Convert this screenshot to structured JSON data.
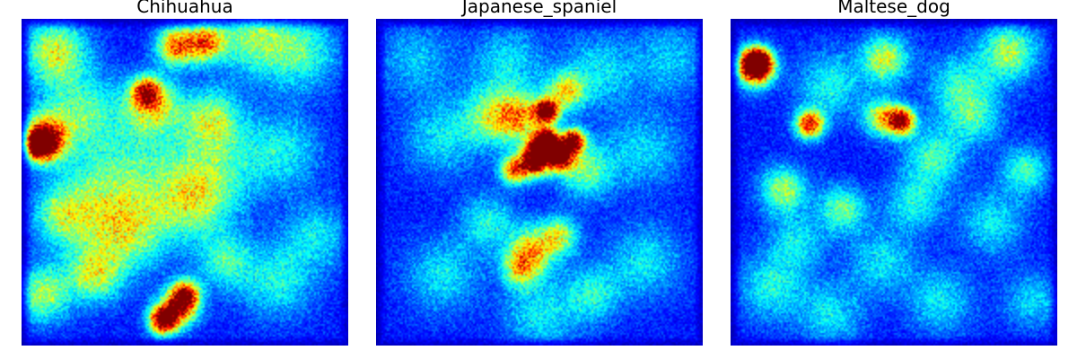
{
  "panels": [
    {
      "title": "Chihuahua",
      "blobs": [
        [
          0.05,
          0.38,
          0.03,
          1.0
        ],
        [
          0.07,
          0.36,
          0.05,
          0.7
        ],
        [
          0.43,
          0.92,
          0.03,
          0.95
        ],
        [
          0.48,
          0.88,
          0.04,
          0.7
        ],
        [
          0.5,
          0.84,
          0.03,
          0.65
        ],
        [
          0.38,
          0.22,
          0.03,
          0.6
        ],
        [
          0.4,
          0.26,
          0.06,
          0.45
        ],
        [
          0.47,
          0.08,
          0.04,
          0.65
        ],
        [
          0.56,
          0.07,
          0.04,
          0.6
        ],
        [
          0.1,
          0.1,
          0.07,
          0.45
        ],
        [
          0.06,
          0.84,
          0.06,
          0.4
        ],
        [
          0.22,
          0.78,
          0.06,
          0.4
        ],
        [
          0.52,
          0.56,
          0.08,
          0.35
        ],
        [
          0.58,
          0.3,
          0.06,
          0.35
        ],
        [
          0.18,
          0.28,
          0.08,
          0.3
        ],
        [
          0.7,
          0.05,
          0.08,
          0.35
        ],
        [
          0.85,
          0.1,
          0.08,
          0.3
        ],
        [
          0.34,
          0.46,
          0.12,
          0.25
        ],
        [
          0.6,
          0.44,
          0.1,
          0.25
        ],
        [
          0.8,
          0.4,
          0.08,
          0.22
        ],
        [
          0.22,
          0.58,
          0.1,
          0.25
        ],
        [
          0.78,
          0.8,
          0.08,
          0.25
        ],
        [
          0.9,
          0.66,
          0.07,
          0.22
        ],
        [
          0.33,
          0.66,
          0.08,
          0.3
        ],
        [
          0.12,
          0.6,
          0.06,
          0.28
        ],
        [
          0.62,
          0.74,
          0.06,
          0.28
        ]
      ]
    },
    {
      "title": "Japanese_spaniel",
      "blobs": [
        [
          0.52,
          0.28,
          0.025,
          1.0
        ],
        [
          0.52,
          0.37,
          0.025,
          1.0
        ],
        [
          0.5,
          0.4,
          0.03,
          0.85
        ],
        [
          0.56,
          0.42,
          0.03,
          0.9
        ],
        [
          0.6,
          0.37,
          0.025,
          0.9
        ],
        [
          0.48,
          0.44,
          0.03,
          0.75
        ],
        [
          0.42,
          0.46,
          0.03,
          0.65
        ],
        [
          0.44,
          0.3,
          0.05,
          0.5
        ],
        [
          0.58,
          0.22,
          0.04,
          0.45
        ],
        [
          0.48,
          0.7,
          0.05,
          0.45
        ],
        [
          0.44,
          0.76,
          0.04,
          0.45
        ],
        [
          0.56,
          0.66,
          0.04,
          0.4
        ],
        [
          0.35,
          0.3,
          0.06,
          0.35
        ],
        [
          0.64,
          0.46,
          0.06,
          0.35
        ],
        [
          0.4,
          0.14,
          0.08,
          0.22
        ],
        [
          0.68,
          0.16,
          0.08,
          0.22
        ],
        [
          0.2,
          0.36,
          0.08,
          0.22
        ],
        [
          0.82,
          0.4,
          0.08,
          0.2
        ],
        [
          0.2,
          0.78,
          0.08,
          0.22
        ],
        [
          0.82,
          0.74,
          0.08,
          0.22
        ],
        [
          0.12,
          0.12,
          0.08,
          0.18
        ],
        [
          0.9,
          0.12,
          0.08,
          0.18
        ],
        [
          0.5,
          0.9,
          0.08,
          0.22
        ],
        [
          0.66,
          0.84,
          0.06,
          0.25
        ],
        [
          0.34,
          0.62,
          0.06,
          0.25
        ]
      ]
    },
    {
      "title": "Maltese_dog",
      "blobs": [
        [
          0.08,
          0.13,
          0.03,
          1.0
        ],
        [
          0.07,
          0.15,
          0.04,
          0.7
        ],
        [
          0.24,
          0.32,
          0.03,
          0.75
        ],
        [
          0.52,
          0.31,
          0.03,
          0.8
        ],
        [
          0.46,
          0.3,
          0.04,
          0.45
        ],
        [
          0.47,
          0.12,
          0.05,
          0.45
        ],
        [
          0.85,
          0.1,
          0.06,
          0.4
        ],
        [
          0.16,
          0.52,
          0.05,
          0.4
        ],
        [
          0.34,
          0.58,
          0.05,
          0.35
        ],
        [
          0.62,
          0.42,
          0.06,
          0.3
        ],
        [
          0.9,
          0.46,
          0.05,
          0.3
        ],
        [
          0.3,
          0.2,
          0.07,
          0.25
        ],
        [
          0.7,
          0.2,
          0.07,
          0.25
        ],
        [
          0.12,
          0.82,
          0.07,
          0.25
        ],
        [
          0.46,
          0.74,
          0.07,
          0.22
        ],
        [
          0.8,
          0.62,
          0.07,
          0.22
        ],
        [
          0.56,
          0.56,
          0.06,
          0.25
        ],
        [
          0.92,
          0.86,
          0.06,
          0.2
        ],
        [
          0.3,
          0.9,
          0.07,
          0.22
        ],
        [
          0.64,
          0.86,
          0.07,
          0.22
        ],
        [
          0.2,
          0.68,
          0.06,
          0.22
        ],
        [
          0.74,
          0.3,
          0.06,
          0.25
        ]
      ]
    }
  ]
}
